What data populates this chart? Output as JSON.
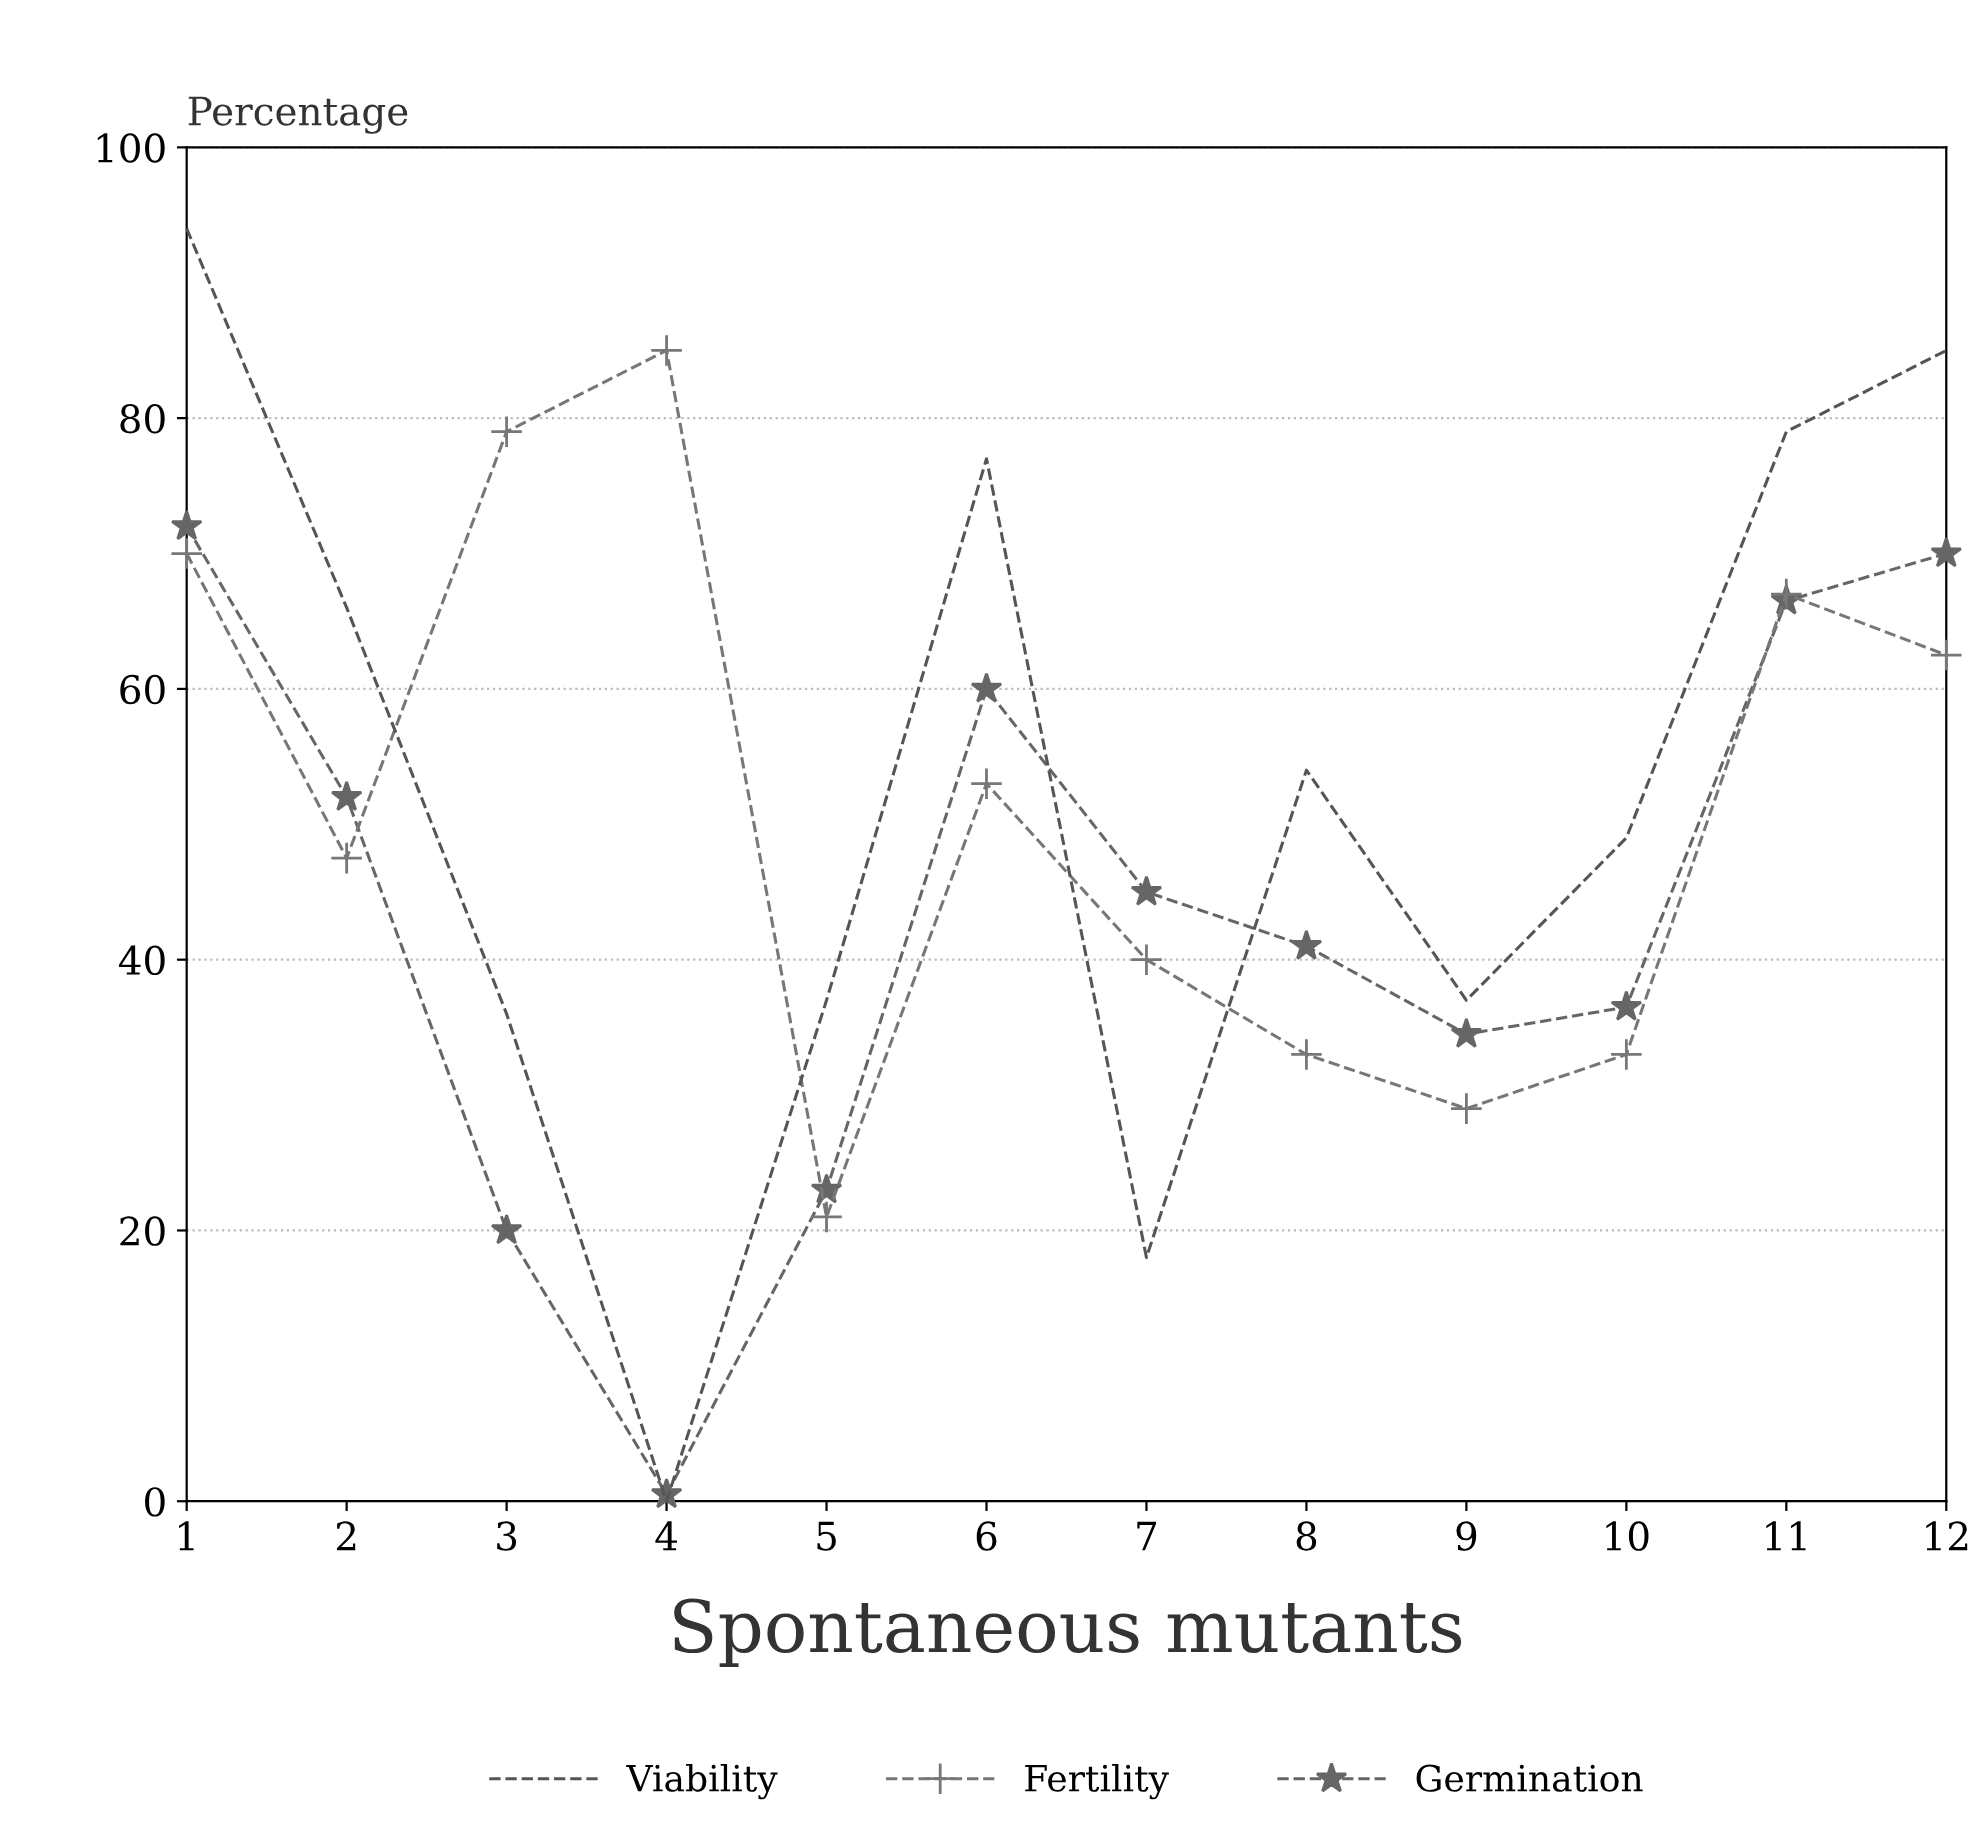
{
  "chart_data": {
    "type": "line",
    "ylabel": "Percentage",
    "xlabel": "Spontaneous mutants",
    "categories": [
      "1",
      "2",
      "3",
      "4",
      "5",
      "6",
      "7",
      "8",
      "9",
      "10",
      "11",
      "12"
    ],
    "series": [
      {
        "name": "Viability",
        "color": "#555555",
        "marker": "none",
        "values": [
          94,
          66,
          36,
          0,
          37,
          77,
          18,
          54,
          37,
          49,
          79,
          85
        ]
      },
      {
        "name": "Fertility",
        "color": "#777777",
        "marker": "cross",
        "values": [
          70,
          47.5,
          79,
          85,
          21,
          53,
          40,
          33,
          29,
          33,
          67,
          62.5
        ]
      },
      {
        "name": "Germination",
        "color": "#666666",
        "marker": "star",
        "values": [
          72,
          52,
          20,
          0.5,
          23,
          60,
          45,
          41,
          34.5,
          36.5,
          66.5,
          70
        ]
      }
    ],
    "ylim": [
      0,
      100
    ],
    "yticks": [
      0,
      20,
      40,
      60,
      80,
      100
    ],
    "grid": "y",
    "legend": "bottom",
    "line_style": "dashed"
  }
}
